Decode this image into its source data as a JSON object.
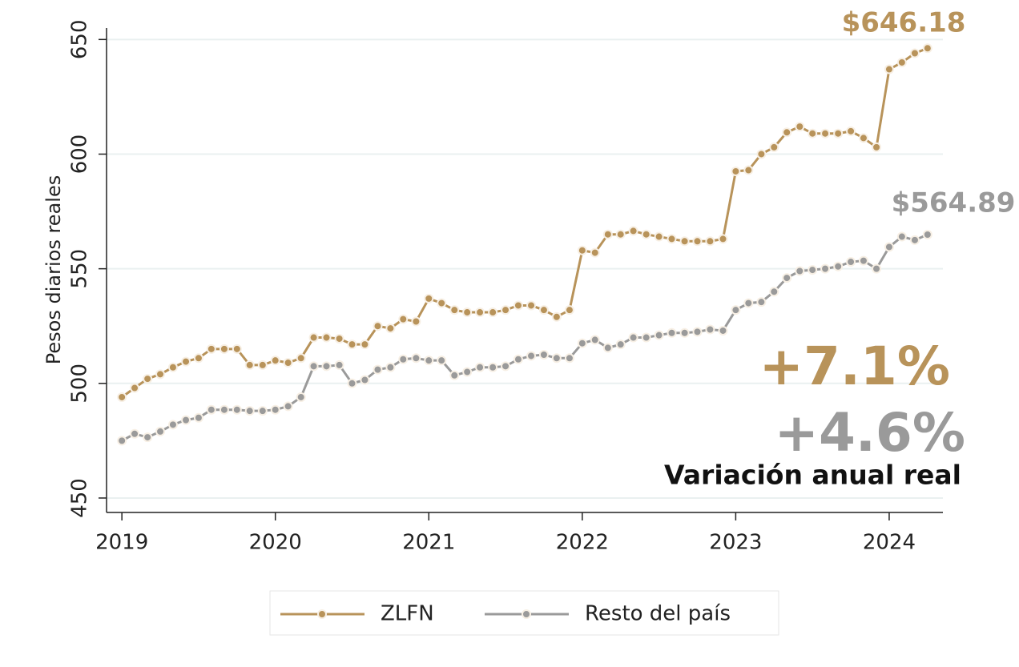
{
  "chart_data": {
    "type": "line",
    "y_label": "Pesos diarios reales",
    "x": [
      2019,
      2019.083,
      2019.167,
      2019.25,
      2019.333,
      2019.417,
      2019.5,
      2019.583,
      2019.667,
      2019.75,
      2019.833,
      2019.917,
      2020,
      2020.083,
      2020.167,
      2020.25,
      2020.333,
      2020.417,
      2020.5,
      2020.583,
      2020.667,
      2020.75,
      2020.833,
      2020.917,
      2021,
      2021.083,
      2021.167,
      2021.25,
      2021.333,
      2021.417,
      2021.5,
      2021.583,
      2021.667,
      2021.75,
      2021.833,
      2021.917,
      2022,
      2022.083,
      2022.167,
      2022.25,
      2022.333,
      2022.417,
      2022.5,
      2022.583,
      2022.667,
      2022.75,
      2022.833,
      2022.917,
      2023,
      2023.083,
      2023.167,
      2023.25,
      2023.333,
      2023.417,
      2023.5,
      2023.583,
      2023.667,
      2023.75,
      2023.833,
      2023.917,
      2024,
      2024.083,
      2024.167,
      2024.25
    ],
    "series": [
      {
        "name": "ZLFN",
        "color": "#b8935a",
        "values": [
          494,
          498,
          502,
          504,
          507,
          509.5,
          511,
          515,
          515,
          515,
          508,
          508,
          510,
          509,
          511,
          520,
          520,
          519.5,
          517,
          517,
          525,
          524,
          528,
          527,
          537,
          535,
          532,
          531,
          531,
          531,
          532,
          534,
          534,
          532,
          529,
          532,
          558,
          557,
          565,
          565,
          566.5,
          565,
          564,
          563,
          562,
          562,
          562,
          563,
          592.5,
          593,
          600,
          603,
          609.5,
          612,
          609,
          609,
          609,
          610,
          607,
          603,
          637,
          640,
          644,
          646.18
        ]
      },
      {
        "name": "Resto del país",
        "color": "#9a9a9a",
        "values": [
          475,
          478,
          476.5,
          479,
          482,
          484,
          485,
          488.5,
          488.5,
          488.5,
          488,
          488,
          488.5,
          490,
          494,
          507.5,
          507.5,
          508,
          500,
          501.5,
          506,
          507,
          510.5,
          511,
          510,
          510,
          503.5,
          505,
          507,
          507,
          507.5,
          510.5,
          512,
          512.5,
          511,
          511,
          517.5,
          519,
          515.5,
          517,
          520,
          520,
          521,
          522,
          522,
          522.5,
          523.5,
          523,
          532,
          535,
          535.5,
          540,
          546,
          549,
          549.5,
          550,
          551,
          553,
          553.5,
          550,
          559.5,
          564,
          562.5,
          564.89
        ]
      }
    ],
    "annotations": [
      "$646.18",
      "$564.89",
      "+7.1%",
      "+4.6%",
      "Variación anual real"
    ],
    "xlim": [
      2018.9,
      2024.35
    ],
    "xticks": [
      2019,
      2020,
      2021,
      2022,
      2023,
      2024
    ],
    "ylim": [
      443.7,
      655
    ],
    "yticks": [
      450,
      500,
      550,
      600,
      650
    ],
    "grid": true,
    "legend": "bottom"
  }
}
